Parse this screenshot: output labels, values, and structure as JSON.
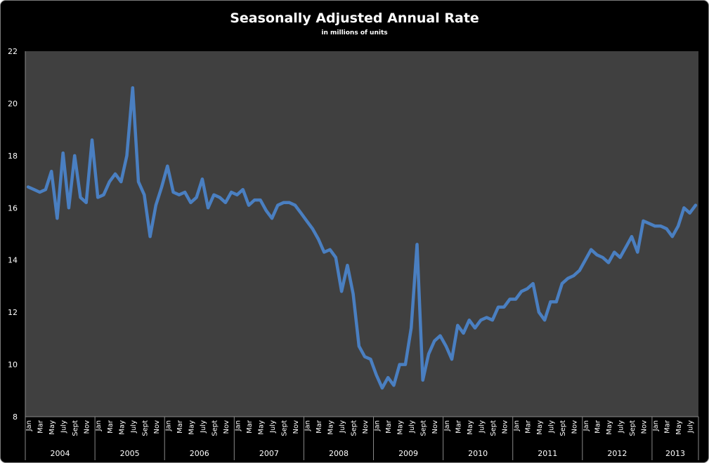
{
  "chart_data": {
    "type": "line",
    "title": "Seasonally Adjusted Annual Rate",
    "subtitle": "in millions of units",
    "xlabel": "",
    "ylabel": "",
    "ylim": [
      8,
      22
    ],
    "yticks": [
      8,
      10,
      12,
      14,
      16,
      18,
      20,
      22
    ],
    "grid": false,
    "legend": "none",
    "years": [
      "2004",
      "2005",
      "2006",
      "2007",
      "2008",
      "2009",
      "2010",
      "2011",
      "2012",
      "2013"
    ],
    "month_tick_labels": [
      "Jan",
      "",
      "Mar",
      "",
      "May",
      "",
      "July",
      "",
      "Sept",
      "",
      "Nov",
      ""
    ],
    "x_start": "2004-01",
    "x_end": "2013-08",
    "colors": {
      "line": "#4a7fc1",
      "plot_background": "#404040",
      "background": "#000000"
    },
    "series": [
      {
        "values": [
          16.8,
          16.7,
          16.6,
          16.7,
          17.4,
          15.6,
          18.1,
          16.0,
          18.0,
          16.4,
          16.2,
          18.6,
          16.4,
          16.5,
          17.0,
          17.3,
          17.0,
          18.0,
          20.6,
          17.0,
          16.5,
          14.9,
          16.1,
          16.8,
          17.6,
          16.6,
          16.5,
          16.6,
          16.2,
          16.4,
          17.1,
          16.0,
          16.5,
          16.4,
          16.2,
          16.6,
          16.5,
          16.7,
          16.1,
          16.3,
          16.3,
          15.9,
          15.6,
          16.1,
          16.2,
          16.2,
          16.1,
          15.8,
          15.5,
          15.2,
          14.8,
          14.3,
          14.4,
          14.1,
          12.8,
          13.8,
          12.7,
          10.7,
          10.3,
          10.2,
          9.6,
          9.1,
          9.5,
          9.2,
          10.0,
          10.0,
          11.4,
          14.6,
          9.4,
          10.4,
          10.9,
          11.1,
          10.7,
          10.2,
          11.5,
          11.2,
          11.7,
          11.4,
          11.7,
          11.8,
          11.7,
          12.2,
          12.2,
          12.5,
          12.5,
          12.8,
          12.9,
          13.1,
          12.0,
          11.7,
          12.4,
          12.4,
          13.1,
          13.3,
          13.4,
          13.6,
          14.0,
          14.4,
          14.2,
          14.1,
          13.9,
          14.3,
          14.1,
          14.5,
          14.9,
          14.3,
          15.5,
          15.4,
          15.3,
          15.3,
          15.2,
          14.9,
          15.3,
          16.0,
          15.8,
          16.1
        ]
      }
    ]
  }
}
